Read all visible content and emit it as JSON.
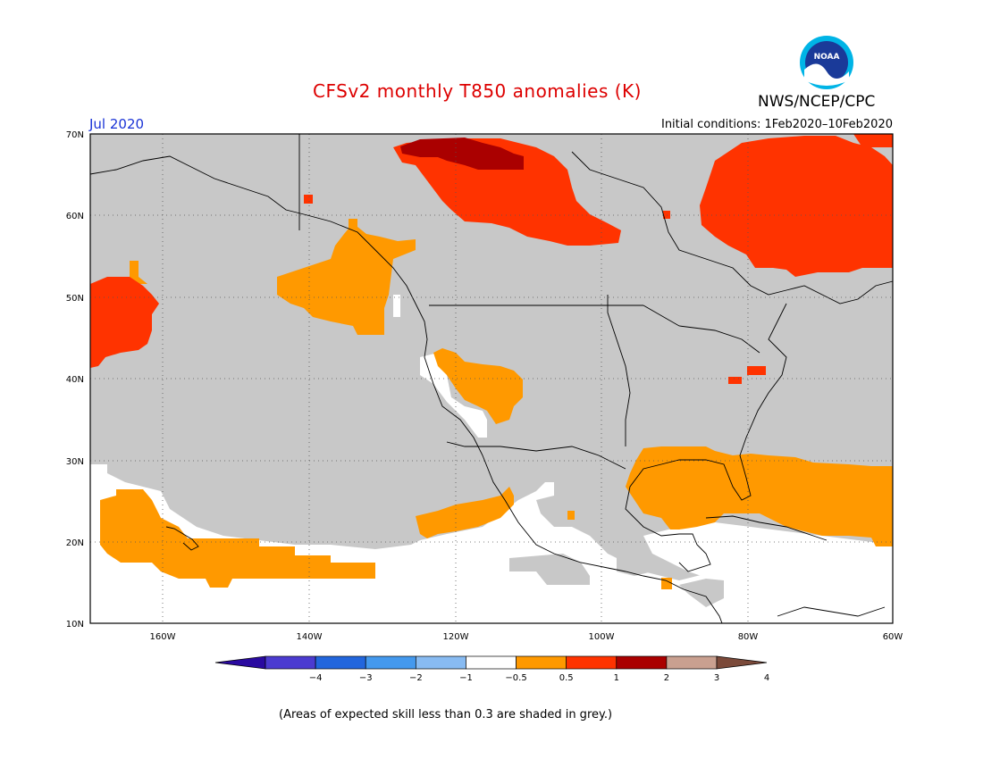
{
  "header": {
    "title": "CFSv2 monthly T850 anomalies (K)",
    "organization": "NWS/NCEP/CPC",
    "logo_text": "NOAA",
    "valid_month": "Jul 2020",
    "initial_conditions": "Initial conditions: 1Feb2020–10Feb2020"
  },
  "map": {
    "lat_labels": [
      "70N",
      "60N",
      "50N",
      "40N",
      "30N",
      "20N",
      "10N"
    ],
    "lon_labels": [
      "160W",
      "140W",
      "120W",
      "100W",
      "80W",
      "60W"
    ],
    "colors": {
      "low_skill_grey": "#c8c8c8",
      "ocean_land_bg": "#ffffff",
      "coast_lines": "#000000",
      "gridlines": "#555555"
    }
  },
  "colorbar": {
    "labels": [
      "−4",
      "−3",
      "−2",
      "−1",
      "−0.5",
      "0.5",
      "1",
      "2",
      "3",
      "4"
    ],
    "colors": [
      "#2a0aa0",
      "#4b3bd0",
      "#2266dd",
      "#4499ee",
      "#88bbf2",
      "#ffffff",
      "#ff9900",
      "#ff3300",
      "#aa0000",
      "#c9a090",
      "#7b4a3a"
    ]
  },
  "footnote": "(Areas of expected skill less than 0.3 are shaded in grey.)"
}
